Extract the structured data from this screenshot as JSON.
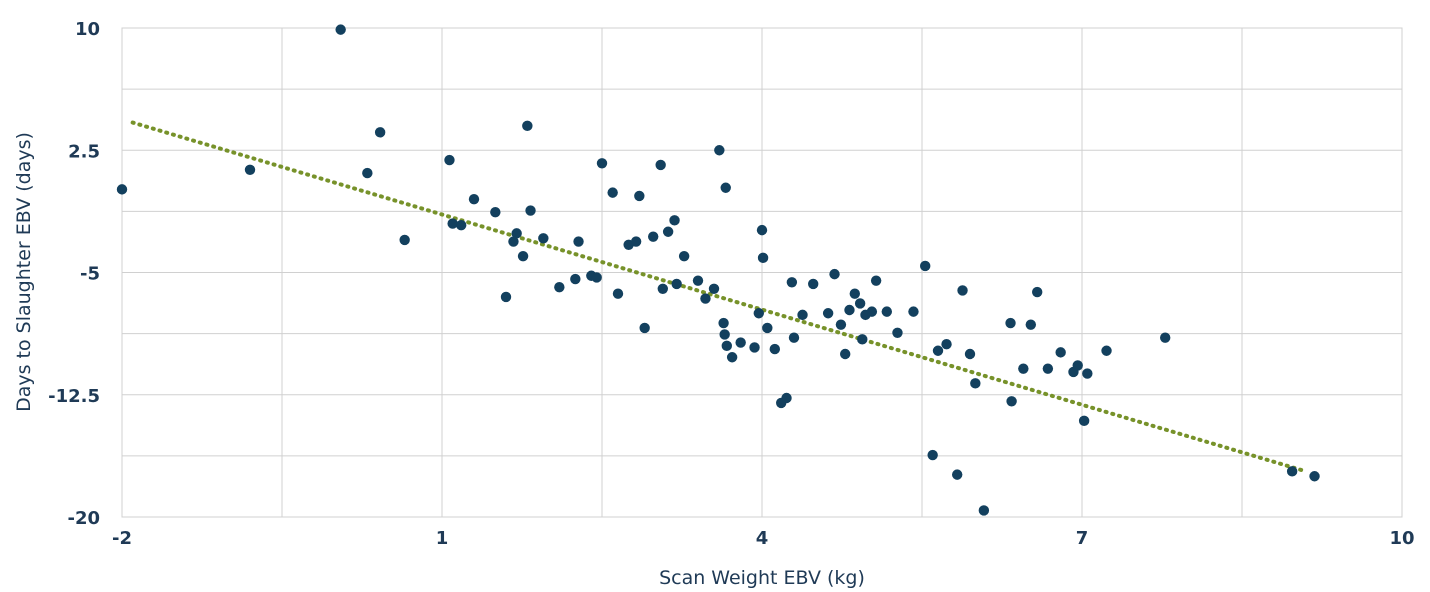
{
  "chart_data": {
    "type": "scatter",
    "title": "",
    "xlabel": "Scan Weight EBV (kg)",
    "ylabel": "Days to Slaughter EBV (days)",
    "xlim": [
      -2,
      10
    ],
    "ylim": [
      -20,
      10
    ],
    "xticks": [
      -2,
      1,
      4,
      7,
      10
    ],
    "xtick_labels": [
      "-2",
      "1",
      "4",
      "7",
      "10"
    ],
    "yticks": [
      -20,
      -12.5,
      -5,
      2.5,
      10
    ],
    "ytick_labels": [
      "-20",
      "-12.5",
      "-5",
      "2.5",
      "10"
    ],
    "grid": true,
    "legend": "none",
    "colors": {
      "points": "#13405e",
      "trendline": "#77922a",
      "grid": "#d0d0d0",
      "text": "#1f3a56"
    },
    "trendline": {
      "style": "dotted",
      "x": [
        -1.9,
        9.1
      ],
      "y": [
        4.2,
        -17.2
      ]
    },
    "points": [
      {
        "x": -2.0,
        "y": 0.1
      },
      {
        "x": -0.8,
        "y": 1.3
      },
      {
        "x": 0.05,
        "y": 9.9
      },
      {
        "x": 0.3,
        "y": 1.1
      },
      {
        "x": 0.42,
        "y": 3.6
      },
      {
        "x": 0.65,
        "y": -3.0
      },
      {
        "x": 1.07,
        "y": 1.9
      },
      {
        "x": 1.1,
        "y": -2.0
      },
      {
        "x": 1.18,
        "y": -2.1
      },
      {
        "x": 1.3,
        "y": -0.5
      },
      {
        "x": 1.5,
        "y": -1.3
      },
      {
        "x": 1.6,
        "y": -6.5
      },
      {
        "x": 1.67,
        "y": -3.1
      },
      {
        "x": 1.7,
        "y": -2.6
      },
      {
        "x": 1.76,
        "y": -4.0
      },
      {
        "x": 1.8,
        "y": 4.0
      },
      {
        "x": 1.83,
        "y": -1.2
      },
      {
        "x": 1.95,
        "y": -2.9
      },
      {
        "x": 2.1,
        "y": -5.9
      },
      {
        "x": 2.25,
        "y": -5.4
      },
      {
        "x": 2.28,
        "y": -3.1
      },
      {
        "x": 2.4,
        "y": -5.2
      },
      {
        "x": 2.45,
        "y": -5.3
      },
      {
        "x": 2.5,
        "y": 1.7
      },
      {
        "x": 2.6,
        "y": -0.1
      },
      {
        "x": 2.65,
        "y": -6.3
      },
      {
        "x": 2.75,
        "y": -3.3
      },
      {
        "x": 2.82,
        "y": -3.1
      },
      {
        "x": 2.85,
        "y": -0.3
      },
      {
        "x": 2.9,
        "y": -8.4
      },
      {
        "x": 2.98,
        "y": -2.8
      },
      {
        "x": 3.05,
        "y": 1.6
      },
      {
        "x": 3.07,
        "y": -6.0
      },
      {
        "x": 3.12,
        "y": -2.5
      },
      {
        "x": 3.18,
        "y": -1.8
      },
      {
        "x": 3.2,
        "y": -5.7
      },
      {
        "x": 3.27,
        "y": -4.0
      },
      {
        "x": 3.4,
        "y": -5.5
      },
      {
        "x": 3.47,
        "y": -6.6
      },
      {
        "x": 3.55,
        "y": -6.0
      },
      {
        "x": 3.6,
        "y": 2.5
      },
      {
        "x": 3.64,
        "y": -8.1
      },
      {
        "x": 3.65,
        "y": -8.8
      },
      {
        "x": 3.66,
        "y": 0.2
      },
      {
        "x": 3.67,
        "y": -9.5
      },
      {
        "x": 3.72,
        "y": -10.2
      },
      {
        "x": 3.8,
        "y": -9.3
      },
      {
        "x": 3.93,
        "y": -9.6
      },
      {
        "x": 3.97,
        "y": -7.5
      },
      {
        "x": 4.0,
        "y": -2.4
      },
      {
        "x": 4.01,
        "y": -4.1
      },
      {
        "x": 4.05,
        "y": -8.4
      },
      {
        "x": 4.12,
        "y": -9.7
      },
      {
        "x": 4.18,
        "y": -13.0
      },
      {
        "x": 4.23,
        "y": -12.7
      },
      {
        "x": 4.28,
        "y": -5.6
      },
      {
        "x": 4.3,
        "y": -9.0
      },
      {
        "x": 4.38,
        "y": -7.6
      },
      {
        "x": 4.48,
        "y": -5.7
      },
      {
        "x": 4.62,
        "y": -7.5
      },
      {
        "x": 4.68,
        "y": -5.1
      },
      {
        "x": 4.74,
        "y": -8.2
      },
      {
        "x": 4.78,
        "y": -10.0
      },
      {
        "x": 4.82,
        "y": -7.3
      },
      {
        "x": 4.87,
        "y": -6.3
      },
      {
        "x": 4.92,
        "y": -6.9
      },
      {
        "x": 4.94,
        "y": -9.1
      },
      {
        "x": 4.97,
        "y": -7.6
      },
      {
        "x": 5.03,
        "y": -7.4
      },
      {
        "x": 5.07,
        "y": -5.5
      },
      {
        "x": 5.17,
        "y": -7.4
      },
      {
        "x": 5.27,
        "y": -8.7
      },
      {
        "x": 5.42,
        "y": -7.4
      },
      {
        "x": 5.53,
        "y": -4.6
      },
      {
        "x": 5.6,
        "y": -16.2
      },
      {
        "x": 5.65,
        "y": -9.8
      },
      {
        "x": 5.73,
        "y": -9.4
      },
      {
        "x": 5.83,
        "y": -17.4
      },
      {
        "x": 5.88,
        "y": -6.1
      },
      {
        "x": 5.95,
        "y": -10.0
      },
      {
        "x": 6.0,
        "y": -11.8
      },
      {
        "x": 6.08,
        "y": -19.6
      },
      {
        "x": 6.33,
        "y": -8.1
      },
      {
        "x": 6.34,
        "y": -12.9
      },
      {
        "x": 6.45,
        "y": -10.9
      },
      {
        "x": 6.52,
        "y": -8.2
      },
      {
        "x": 6.58,
        "y": -6.2
      },
      {
        "x": 6.68,
        "y": -10.9
      },
      {
        "x": 6.8,
        "y": -9.9
      },
      {
        "x": 6.92,
        "y": -11.1
      },
      {
        "x": 6.96,
        "y": -10.7
      },
      {
        "x": 7.02,
        "y": -14.1
      },
      {
        "x": 7.05,
        "y": -11.2
      },
      {
        "x": 7.23,
        "y": -9.8
      },
      {
        "x": 7.78,
        "y": -9.0
      },
      {
        "x": 8.97,
        "y": -17.2
      },
      {
        "x": 9.18,
        "y": -17.5
      }
    ]
  }
}
